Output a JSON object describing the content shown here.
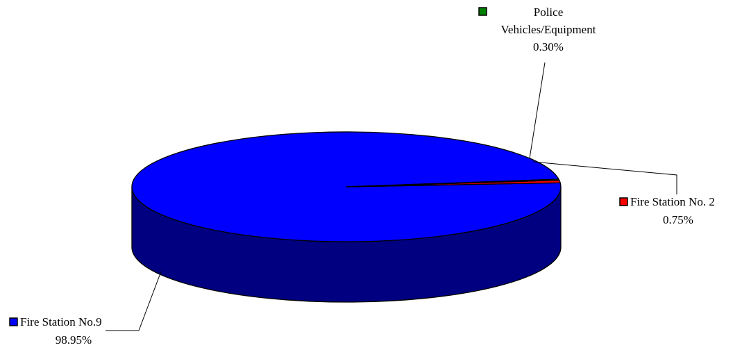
{
  "chart_data": {
    "type": "pie",
    "style": "3d",
    "start_angle_deg": 8,
    "colors": {
      "Fire Station No.9": {
        "top": "#0000ff",
        "side": "#000080"
      },
      "Fire Station No. 2": {
        "top": "#ff0000",
        "side": "#800000"
      },
      "Police Vehicles/Equipment": {
        "top": "#008000",
        "side": "#004000"
      }
    },
    "slices": [
      {
        "label": "Fire Station No.9",
        "value": 98.95,
        "display": "98.95%"
      },
      {
        "label": "Fire Station No. 2",
        "value": 0.75,
        "display": "0.75%"
      },
      {
        "label": "Police Vehicles/Equipment",
        "value": 0.3,
        "display": "0.30%"
      }
    ],
    "legend_placement": "callouts"
  }
}
